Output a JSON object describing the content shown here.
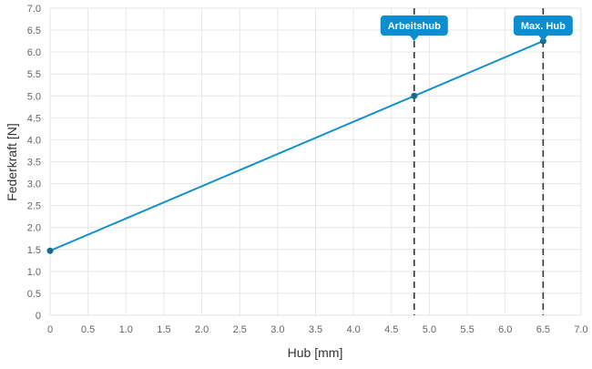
{
  "chart_data": {
    "type": "line",
    "title": "",
    "xlabel": "Hub [mm]",
    "ylabel": "Federkraft [N]",
    "xlim": [
      0,
      7.0
    ],
    "ylim": [
      0,
      7.0
    ],
    "x_ticks": [
      "0",
      "0.5",
      "1.0",
      "1.5",
      "2.0",
      "2.5",
      "3.0",
      "3.5",
      "4.0",
      "4.5",
      "5.0",
      "5.5",
      "6.0",
      "6.5",
      "7.0"
    ],
    "y_ticks": [
      "0",
      "0.5",
      "1.0",
      "1.5",
      "2.0",
      "2.5",
      "3.0",
      "3.5",
      "4.0",
      "4.5",
      "5.0",
      "5.5",
      "6.0",
      "6.5",
      "7.0"
    ],
    "grid": true,
    "series": [
      {
        "x": [
          0,
          4.8,
          6.5
        ],
        "y": [
          1.47,
          5.0,
          6.25
        ]
      }
    ],
    "annotations": [
      {
        "label": "Arbeitshub",
        "x": 4.8,
        "y": 5.0
      },
      {
        "label": "Max. Hub",
        "x": 6.5,
        "y": 6.25
      }
    ],
    "colors": {
      "line": "#1591cb",
      "point": "#1a6a8c",
      "badge": "#0a8ed0",
      "marker_line": "#333333"
    }
  }
}
